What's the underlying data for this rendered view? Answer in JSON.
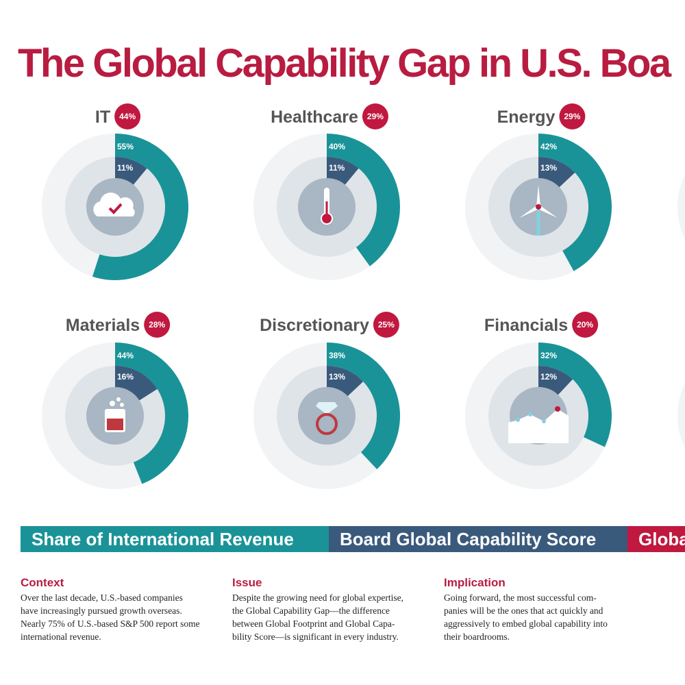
{
  "title": "The Global Capability Gap in U.S. Boa",
  "legend": [
    {
      "name": "Share of International Revenue",
      "color": "#1a9398"
    },
    {
      "name": "Board Global Capability Score",
      "color": "#3a5a7c"
    },
    {
      "name": "Globa",
      "color": "#c0183f"
    }
  ],
  "charts": [
    {
      "type": "radial",
      "title": "IT",
      "gap": 44,
      "gap_label": "44%",
      "revenue": 55,
      "revenue_label": "55%",
      "score": 11,
      "score_label": "11%",
      "icon": "cloud"
    },
    {
      "type": "radial",
      "title": "Healthcare",
      "gap": 29,
      "gap_label": "29%",
      "revenue": 40,
      "revenue_label": "40%",
      "score": 11,
      "score_label": "11%",
      "icon": "thermometer"
    },
    {
      "type": "radial",
      "title": "Energy",
      "gap": 29,
      "gap_label": "29%",
      "revenue": 42,
      "revenue_label": "42%",
      "score": 13,
      "score_label": "13%",
      "icon": "turbine"
    },
    {
      "type": "radial",
      "title": "Materials",
      "gap": 28,
      "gap_label": "28%",
      "revenue": 44,
      "revenue_label": "44%",
      "score": 16,
      "score_label": "16%",
      "icon": "beaker"
    },
    {
      "type": "radial",
      "title": "Discretionary",
      "gap": 25,
      "gap_label": "25%",
      "revenue": 38,
      "revenue_label": "38%",
      "score": 13,
      "score_label": "13%",
      "icon": "ring"
    },
    {
      "type": "radial",
      "title": "Financials",
      "gap": 20,
      "gap_label": "20%",
      "revenue": 32,
      "revenue_label": "32%",
      "score": 12,
      "score_label": "12%",
      "icon": "graph"
    }
  ],
  "notes": [
    {
      "heading": "Context",
      "lines": [
        "Over the last decade, U.S.-based companies",
        "have increasingly pursued growth overseas.",
        "Nearly 75% of U.S.-based S&P 500 report some",
        "international revenue."
      ]
    },
    {
      "heading": "Issue",
      "lines": [
        "Despite the growing need for global expertise,",
        "the Global Capability Gap—the difference",
        "between Global Footprint and Global Capa-",
        "bility Score—is significant in every industry."
      ]
    },
    {
      "heading": "Implication",
      "lines": [
        "Going forward, the most successful com-",
        "panies will be the ones that act quickly and",
        "aggressively to embed global capability into",
        "their boardrooms."
      ]
    }
  ]
}
